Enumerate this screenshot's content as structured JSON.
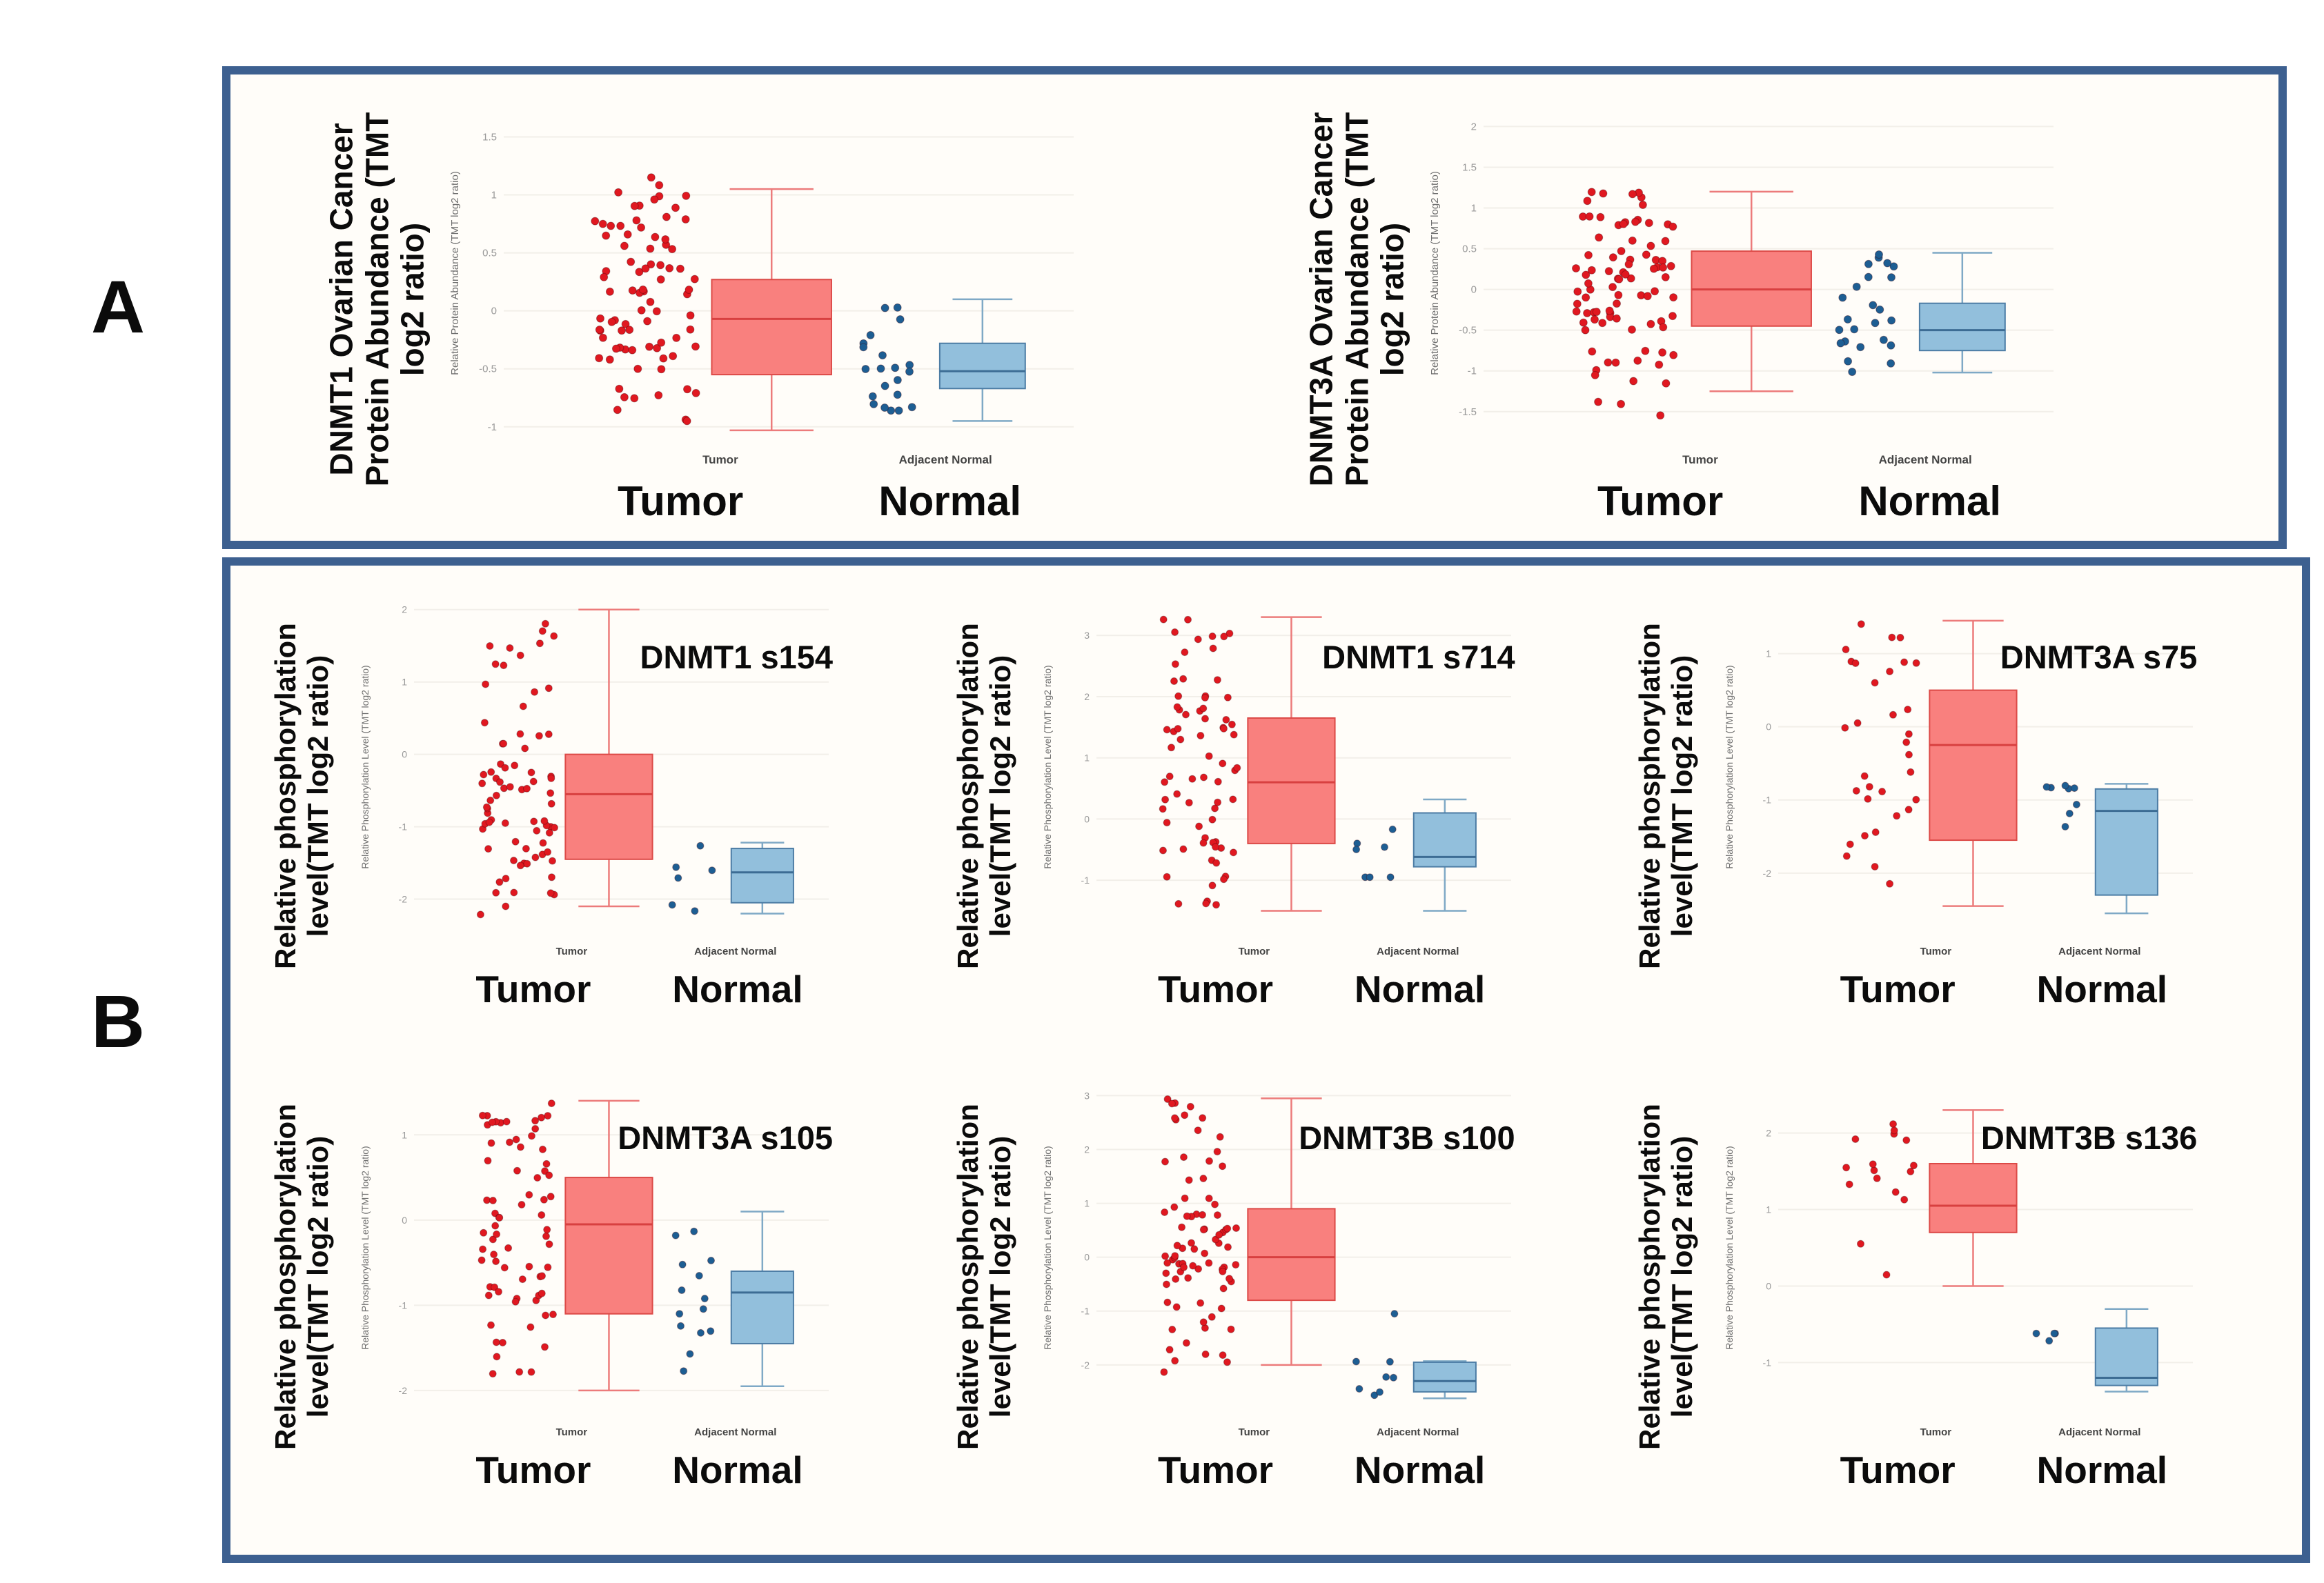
{
  "panels": {
    "a_label": "A",
    "b_label": "B"
  },
  "colors": {
    "panel_border": "#3d6090",
    "panel_bg": "#fffdf9",
    "grid": "#f2efe9",
    "tick_text": "#999999",
    "inner_label_text": "#6f6f6f",
    "inner_xtick_text": "#444444",
    "tumor_fill": "#f9807e",
    "tumor_stroke": "#dc4a47",
    "tumor_median": "#d84040",
    "tumor_whisker": "#ec7b7b",
    "tumor_dot": "#e01820",
    "normal_fill": "#92bfdc",
    "normal_stroke": "#4d7da5",
    "normal_median": "#3c6c94",
    "normal_whisker": "#7fa9c6",
    "normal_dot": "#1d5e93"
  },
  "chart_data": [
    {
      "id": "A1",
      "type": "boxplot",
      "outer_ylabel_lines": [
        "DNMT1 Ovarian Cancer",
        "Protein Abundance (TMT",
        "log2 ratio)"
      ],
      "plot_title": "",
      "inner_ylabel": "Relative Protein Abundance (TMT log2 ratio)",
      "inner_xticklabels": [
        "Tumor",
        "Adjacent Normal"
      ],
      "outer_xlabels": [
        "Tumor",
        "Normal"
      ],
      "ylim": [
        -1.15,
        1.8
      ],
      "yticks": [
        1.5,
        1,
        0.5,
        0,
        -0.5,
        -1
      ],
      "groups": [
        {
          "name": "Tumor",
          "palette": "tumor",
          "box": {
            "low": -1.03,
            "q1": -0.55,
            "median": -0.07,
            "q3": 0.27,
            "high": 1.05
          },
          "scatter": {
            "n": 82,
            "min": -0.95,
            "max": 1.63,
            "seed": 101
          }
        },
        {
          "name": "Adjacent Normal",
          "palette": "normal",
          "box": {
            "low": -0.95,
            "q1": -0.67,
            "median": -0.52,
            "q3": -0.28,
            "high": 0.1
          },
          "scatter": {
            "n": 21,
            "min": -0.86,
            "max": 0.1,
            "seed": 102
          }
        }
      ]
    },
    {
      "id": "A2",
      "type": "boxplot",
      "outer_ylabel_lines": [
        "DNMT3A Ovarian Cancer",
        "Protein Abundance (TMT",
        "log2 ratio)"
      ],
      "plot_title": "",
      "inner_ylabel": "Relative Protein Abundance (TMT log2 ratio)",
      "inner_xticklabels": [
        "Tumor",
        "Adjacent Normal"
      ],
      "outer_xlabels": [
        "Tumor",
        "Normal"
      ],
      "ylim": [
        -1.9,
        2.3
      ],
      "yticks": [
        2,
        1.5,
        1,
        0.5,
        0,
        -0.5,
        -1,
        -1.5
      ],
      "groups": [
        {
          "name": "Tumor",
          "palette": "tumor",
          "box": {
            "low": -1.25,
            "q1": -0.45,
            "median": 0.0,
            "q3": 0.47,
            "high": 1.2
          },
          "scatter": {
            "n": 88,
            "min": -1.72,
            "max": 2.15,
            "seed": 103
          }
        },
        {
          "name": "Adjacent Normal",
          "palette": "normal",
          "box": {
            "low": -1.02,
            "q1": -0.75,
            "median": -0.5,
            "q3": -0.17,
            "high": 0.45
          },
          "scatter": {
            "n": 24,
            "min": -1.05,
            "max": 0.45,
            "seed": 104
          }
        }
      ]
    },
    {
      "id": "B1",
      "type": "boxplot",
      "outer_ylabel_lines": [
        "Relative phosphorylation",
        "level(TMT log2 ratio)"
      ],
      "plot_title": "DNMT1 s154",
      "inner_ylabel": "Relative Phosphorylation Level (TMT log2 ratio)",
      "inner_xticklabels": [
        "Tumor",
        "Adjacent Normal"
      ],
      "outer_xlabels": [
        "Tumor",
        "Normal"
      ],
      "ylim": [
        -2.5,
        2.15
      ],
      "yticks": [
        2,
        1,
        0,
        -1,
        -2
      ],
      "groups": [
        {
          "name": "Tumor",
          "palette": "tumor",
          "box": {
            "low": -2.1,
            "q1": -1.45,
            "median": -0.55,
            "q3": 0.0,
            "high": 2.0
          },
          "scatter": {
            "n": 76,
            "min": -2.3,
            "max": 2.05,
            "seed": 105
          }
        },
        {
          "name": "Adjacent Normal",
          "palette": "normal",
          "box": {
            "low": -2.2,
            "q1": -2.05,
            "median": -1.63,
            "q3": -1.3,
            "high": -1.22
          },
          "scatter": {
            "n": 6,
            "min": -2.3,
            "max": -1.25,
            "seed": 106
          }
        }
      ]
    },
    {
      "id": "B2",
      "type": "boxplot",
      "outer_ylabel_lines": [
        "Relative phosphorylation",
        "level(TMT log2 ratio)"
      ],
      "plot_title": "DNMT1 s714",
      "inner_ylabel": "Relative Phosphorylation Level (TMT log2 ratio)",
      "inner_xticklabels": [
        "Tumor",
        "Adjacent Normal"
      ],
      "outer_xlabels": [
        "Tumor",
        "Normal"
      ],
      "ylim": [
        -1.9,
        3.6
      ],
      "yticks": [
        3,
        2,
        1,
        0,
        -1
      ],
      "groups": [
        {
          "name": "Tumor",
          "palette": "tumor",
          "box": {
            "low": -1.5,
            "q1": -0.4,
            "median": 0.6,
            "q3": 1.65,
            "high": 3.3
          },
          "scatter": {
            "n": 72,
            "min": -1.65,
            "max": 3.45,
            "seed": 107
          }
        },
        {
          "name": "Adjacent Normal",
          "palette": "normal",
          "box": {
            "low": -1.5,
            "q1": -0.78,
            "median": -0.62,
            "q3": 0.1,
            "high": 0.32
          },
          "scatter": {
            "n": 7,
            "min": -0.95,
            "max": 0.35,
            "seed": 108
          }
        }
      ]
    },
    {
      "id": "B3",
      "type": "boxplot",
      "outer_ylabel_lines": [
        "Relative phosphorylation",
        "level(TMT log2 ratio)"
      ],
      "plot_title": "DNMT3A s75",
      "inner_ylabel": "Relative Phosphorylation Level (TMT log2 ratio)",
      "inner_xticklabels": [
        "Tumor",
        "Adjacent Normal"
      ],
      "outer_xlabels": [
        "Tumor",
        "Normal"
      ],
      "ylim": [
        -2.85,
        1.75
      ],
      "yticks": [
        1,
        0,
        -1,
        -2
      ],
      "groups": [
        {
          "name": "Tumor",
          "palette": "tumor",
          "box": {
            "low": -2.45,
            "q1": -1.55,
            "median": -0.25,
            "q3": 0.5,
            "high": 1.45
          },
          "scatter": {
            "n": 32,
            "min": -2.55,
            "max": 1.5,
            "seed": 109
          }
        },
        {
          "name": "Adjacent Normal",
          "palette": "normal",
          "box": {
            "low": -2.55,
            "q1": -2.3,
            "median": -1.15,
            "q3": -0.85,
            "high": -0.78
          },
          "scatter": {
            "n": 8,
            "min": -2.55,
            "max": -0.68,
            "seed": 110
          }
        }
      ]
    },
    {
      "id": "B4",
      "type": "boxplot",
      "outer_ylabel_lines": [
        "Relative phosphorylation",
        "level(TMT log2 ratio)"
      ],
      "plot_title": "DNMT3A s105",
      "inner_ylabel": "Relative Phosphorylation Level (TMT log2 ratio)",
      "inner_xticklabels": [
        "Tumor",
        "Adjacent Normal"
      ],
      "outer_xlabels": [
        "Tumor",
        "Normal"
      ],
      "ylim": [
        -2.3,
        1.65
      ],
      "yticks": [
        1,
        0,
        -1,
        -2
      ],
      "groups": [
        {
          "name": "Tumor",
          "palette": "tumor",
          "box": {
            "low": -2.0,
            "q1": -1.1,
            "median": -0.05,
            "q3": 0.5,
            "high": 1.4
          },
          "scatter": {
            "n": 72,
            "min": -2.1,
            "max": 1.38,
            "seed": 111
          }
        },
        {
          "name": "Adjacent Normal",
          "palette": "normal",
          "box": {
            "low": -1.95,
            "q1": -1.45,
            "median": -0.85,
            "q3": -0.6,
            "high": 0.1
          },
          "scatter": {
            "n": 14,
            "min": -2.0,
            "max": 0.12,
            "seed": 112
          }
        }
      ]
    },
    {
      "id": "B5",
      "type": "boxplot",
      "outer_ylabel_lines": [
        "Relative phosphorylation",
        "level(TMT log2 ratio)"
      ],
      "plot_title": "DNMT3B s100",
      "inner_ylabel": "Relative Phosphorylation Level (TMT log2 ratio)",
      "inner_xticklabels": [
        "Tumor",
        "Adjacent Normal"
      ],
      "outer_xlabels": [
        "Tumor",
        "Normal"
      ],
      "ylim": [
        -2.95,
        3.3
      ],
      "yticks": [
        3,
        2,
        1,
        0,
        -1,
        -2
      ],
      "groups": [
        {
          "name": "Tumor",
          "palette": "tumor",
          "box": {
            "low": -2.0,
            "q1": -0.8,
            "median": 0.0,
            "q3": 0.9,
            "high": 2.95
          },
          "scatter": {
            "n": 82,
            "min": -2.2,
            "max": 2.95,
            "seed": 113
          }
        },
        {
          "name": "Adjacent Normal",
          "palette": "normal",
          "box": {
            "low": -2.62,
            "q1": -2.5,
            "median": -2.3,
            "q3": -1.95,
            "high": -1.93
          },
          "scatter": {
            "n": 8,
            "min": -2.62,
            "max": -0.55,
            "seed": 114
          }
        }
      ]
    },
    {
      "id": "B6",
      "type": "boxplot",
      "outer_ylabel_lines": [
        "Relative phosphorylation",
        "level(TMT log2 ratio)"
      ],
      "plot_title": "DNMT3B s136",
      "inner_ylabel": "Relative Phosphorylation Level (TMT log2 ratio)",
      "inner_xticklabels": [
        "Tumor",
        "Adjacent Normal"
      ],
      "outer_xlabels": [
        "Tumor",
        "Normal"
      ],
      "ylim": [
        -1.7,
        2.7
      ],
      "yticks": [
        2,
        1,
        0,
        -1
      ],
      "groups": [
        {
          "name": "Tumor",
          "palette": "tumor",
          "box": {
            "low": 0.0,
            "q1": 0.7,
            "median": 1.05,
            "q3": 1.6,
            "high": 2.3
          },
          "scatter": {
            "n": 16,
            "min": -0.02,
            "max": 2.5,
            "seed": 115
          }
        },
        {
          "name": "Adjacent Normal",
          "palette": "normal",
          "box": {
            "low": -1.38,
            "q1": -1.3,
            "median": -1.2,
            "q3": -0.55,
            "high": -0.3
          },
          "scatter": {
            "n": 4,
            "min": -1.4,
            "max": -0.62,
            "seed": 116
          }
        }
      ]
    }
  ]
}
